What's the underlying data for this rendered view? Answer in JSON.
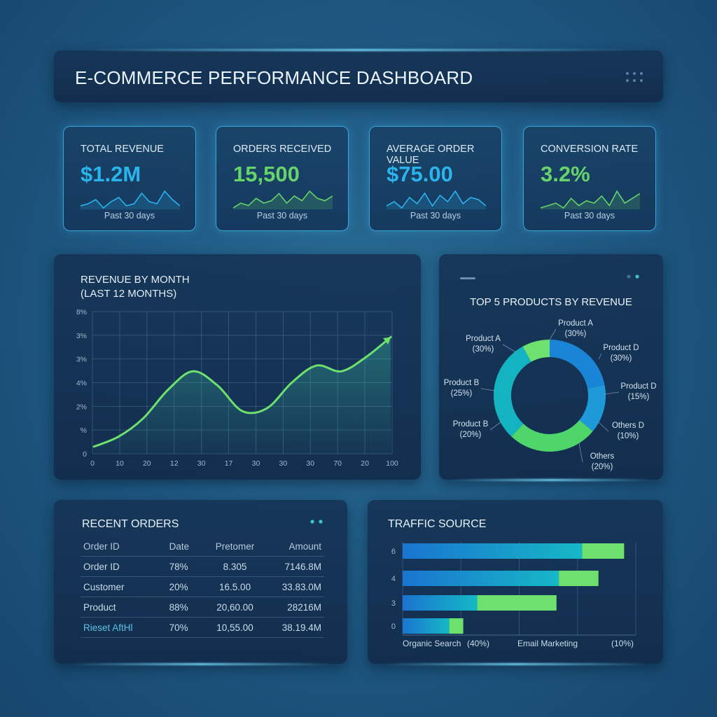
{
  "header": {
    "title": "E-COMMERCE PERFORMANCE DASHBOARD",
    "menu_icon": "grid-dots-icon"
  },
  "kpis": [
    {
      "label": "TOTAL REVENUE",
      "value": "$1.2M",
      "period": "Past 30 days",
      "color": "#2bb3ee",
      "spark": [
        6,
        7,
        9,
        5,
        8,
        10,
        6,
        7,
        12,
        8,
        7,
        13,
        9,
        6
      ]
    },
    {
      "label": "ORDERS RECEIVED",
      "value": "15,500",
      "period": "Past 30 days",
      "color": "#66d36b",
      "spark": [
        5,
        7,
        6,
        9,
        7,
        8,
        11,
        7,
        10,
        8,
        12,
        9,
        8,
        10
      ]
    },
    {
      "label": "AVERAGE ORDER VALUE",
      "value": "$75.00",
      "period": "Past 30 days",
      "color": "#2bb3ee",
      "spark": [
        6,
        8,
        5,
        10,
        7,
        12,
        6,
        11,
        8,
        13,
        7,
        10,
        9,
        6
      ]
    },
    {
      "label": "CONVERSION RATE",
      "value": "3.2%",
      "period": "Past 30 days",
      "color": "#66d36b",
      "spark": [
        5,
        6,
        7,
        5,
        9,
        6,
        8,
        7,
        10,
        6,
        12,
        7,
        9,
        11
      ]
    }
  ],
  "revenue_chart": {
    "title": "REVENUE BY MONTH",
    "subtitle": "(LAST 12 MONTHS)",
    "chart_data": {
      "type": "line",
      "x_tick_labels": [
        "0",
        "10",
        "20",
        "12",
        "30",
        "17",
        "30",
        "30",
        "30",
        "70",
        "20",
        "100"
      ],
      "y_tick_labels": [
        "0",
        "%",
        "2%",
        "4%",
        "3%",
        "3%",
        "8%"
      ],
      "values": [
        0.05,
        0.12,
        0.25,
        0.45,
        0.58,
        0.48,
        0.3,
        0.32,
        0.5,
        0.62,
        0.58,
        0.68,
        0.82
      ],
      "grid": true,
      "line_color": "#6ee06e"
    }
  },
  "products_chart": {
    "title": "TOP 5 PRODUCTS BY REVENUE",
    "chart_data": {
      "type": "pie",
      "slices": [
        {
          "label": "Product A",
          "pct": "(30%)",
          "value": 30,
          "color": "#1a84d6"
        },
        {
          "label": "Product D",
          "pct": "(30%)",
          "value": 30,
          "color": "#1a84d6"
        },
        {
          "label": "Product D",
          "pct": "(15%)",
          "value": 15,
          "color": "#21a7d8"
        },
        {
          "label": "Others D",
          "pct": "(10%)",
          "value": 10,
          "color": "#3ac8a8"
        },
        {
          "label": "Others",
          "pct": "(20%)",
          "value": 20,
          "color": "#4fd66a"
        },
        {
          "label": "Product B",
          "pct": "(20%)",
          "value": 20,
          "color": "#4fd66a"
        },
        {
          "label": "Product B",
          "pct": "(25%)",
          "value": 25,
          "color": "#14b5c4"
        },
        {
          "label": "Product A",
          "pct": "(30%)",
          "value": 30,
          "color": "#6ee06e"
        }
      ]
    }
  },
  "recent_orders": {
    "title": "RECENT ORDERS",
    "columns": [
      "Order ID",
      "Date",
      "Pretomer",
      "Amount"
    ],
    "rows": [
      [
        "Order ID",
        "78%",
        "8.305",
        "7146.8M"
      ],
      [
        "Customer",
        "20%",
        "16.5.00",
        "33.83.0M"
      ],
      [
        "Product",
        "88%",
        "20,60.00",
        "28216M"
      ],
      [
        "Rieset AftHl",
        "70%",
        "10,55.00",
        "38.19.4M"
      ]
    ]
  },
  "traffic_source": {
    "title": "TRAFFIC SOURCE",
    "chart_data": {
      "type": "bar",
      "orientation": "horizontal",
      "y_tick_labels": [
        "6",
        "4",
        "3",
        "0"
      ],
      "bars": [
        {
          "primary": 0.77,
          "secondary": 0.18
        },
        {
          "primary": 0.67,
          "secondary": 0.17
        },
        {
          "primary": 0.32,
          "secondary": 0.34
        },
        {
          "primary": 0.2,
          "secondary": 0.06
        }
      ],
      "x_max": 1.0,
      "legend": [
        "Organic Search",
        "(40%)",
        "Email Marketing",
        "(10%)"
      ],
      "colors": {
        "primary": "#1aa0d6",
        "secondary": "#6ee06e"
      }
    }
  }
}
